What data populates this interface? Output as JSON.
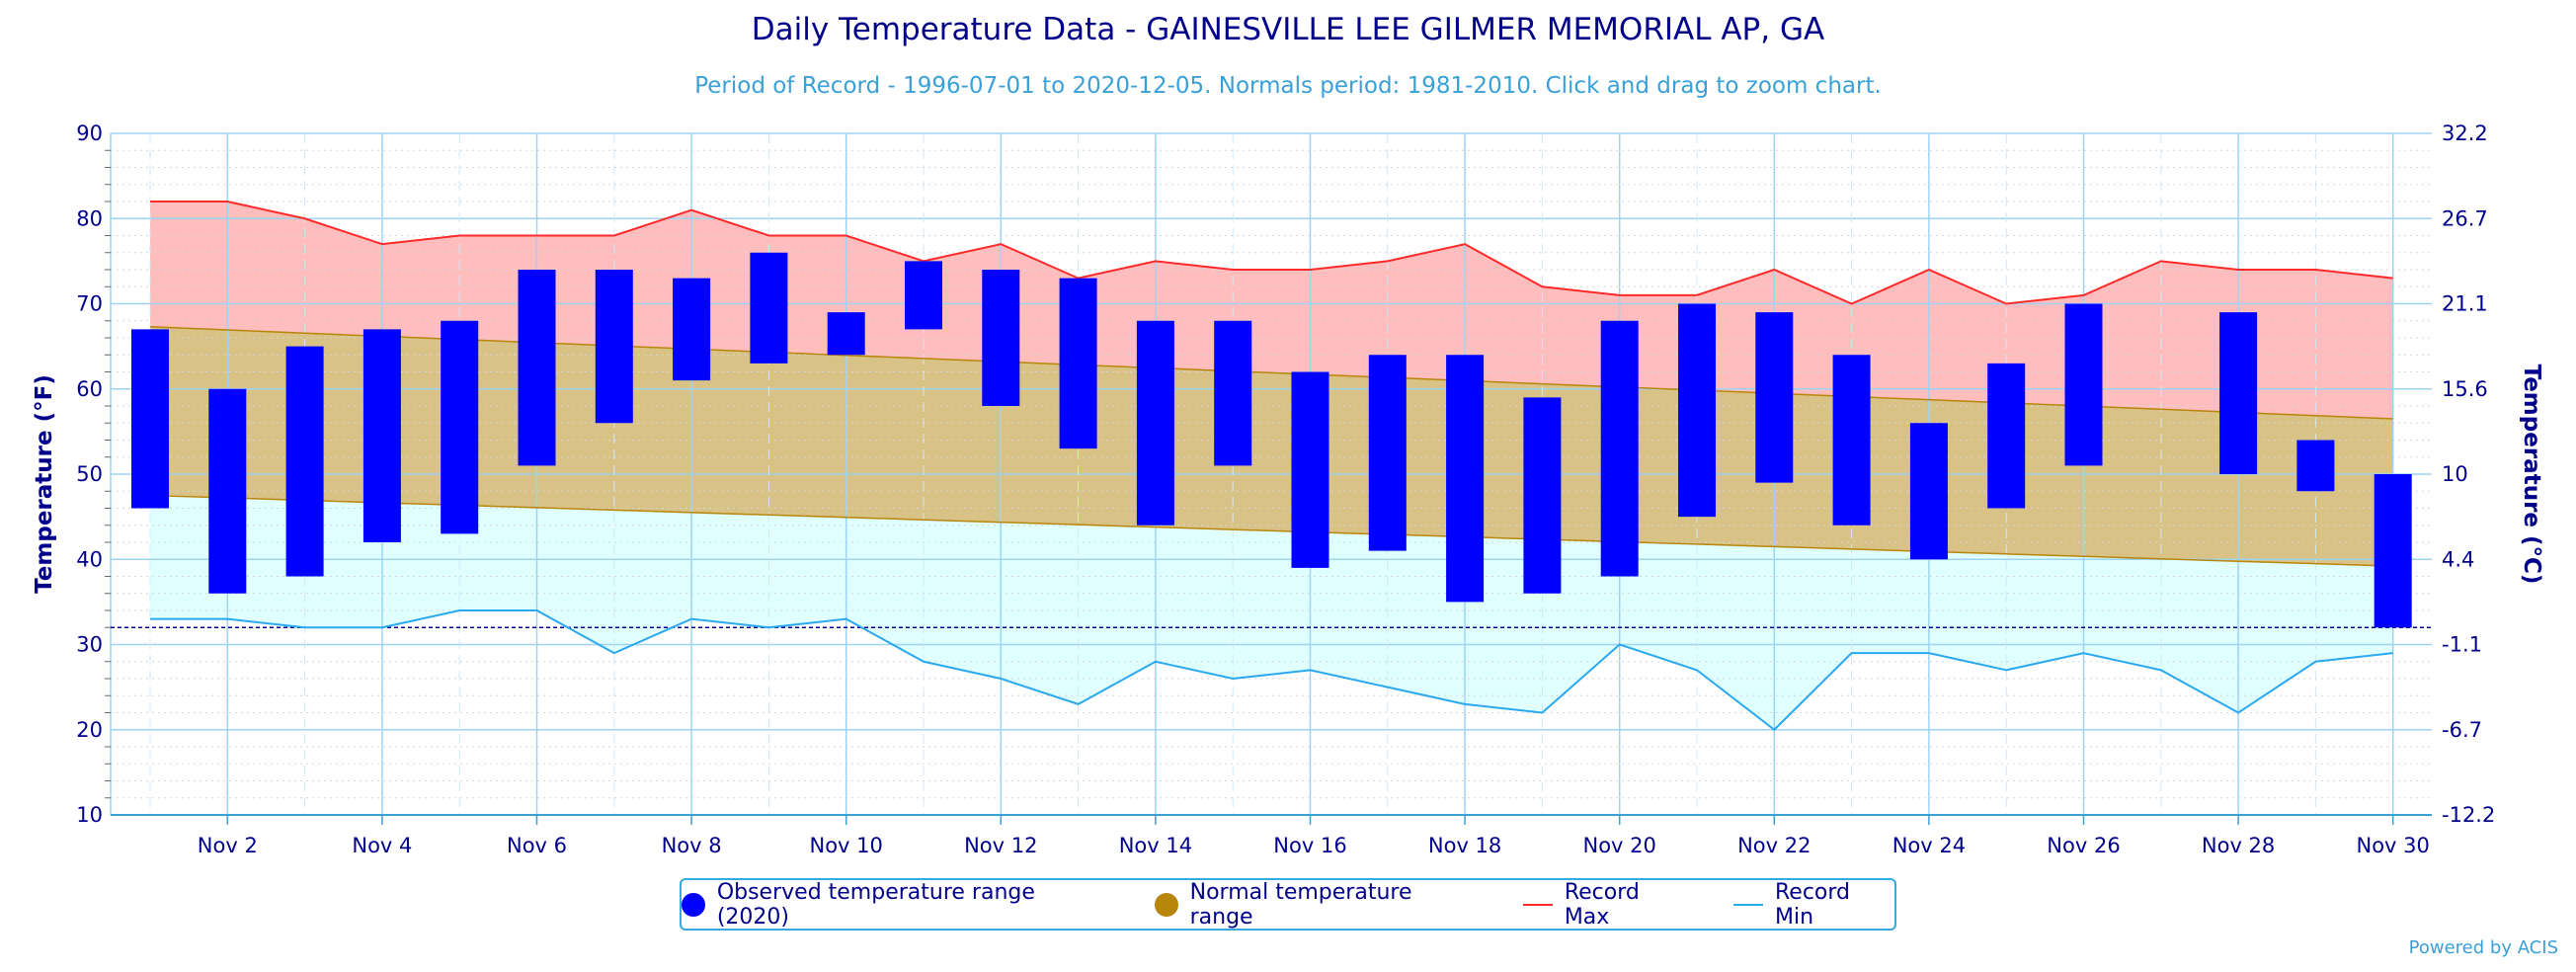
{
  "chart_data": {
    "type": "bar",
    "title": "Daily Temperature Data - GAINESVILLE LEE GILMER MEMORIAL AP, GA",
    "subtitle": "Period of Record - 1996-07-01 to 2020-12-05. Normals period: 1981-2010. Click and drag to zoom chart.",
    "ylabel": "Temperature (°F)",
    "ylabel_right": "Temperature (°C)",
    "ylim": [
      10,
      90
    ],
    "y_ticks": [
      10,
      20,
      30,
      40,
      50,
      60,
      70,
      80,
      90
    ],
    "y_ticks_right": [
      "-12.2",
      "-6.7",
      "-1.1",
      "4.4",
      "10",
      "15.6",
      "21.1",
      "26.7",
      "32.2"
    ],
    "x_tick_labels": [
      "Nov 2",
      "Nov 4",
      "Nov 6",
      "Nov 8",
      "Nov 10",
      "Nov 12",
      "Nov 14",
      "Nov 16",
      "Nov 18",
      "Nov 20",
      "Nov 22",
      "Nov 24",
      "Nov 26",
      "Nov 28",
      "Nov 30"
    ],
    "x_tick_days": [
      2,
      4,
      6,
      8,
      10,
      12,
      14,
      16,
      18,
      20,
      22,
      24,
      26,
      28,
      30
    ],
    "days": [
      1,
      2,
      3,
      4,
      5,
      6,
      7,
      8,
      9,
      10,
      11,
      12,
      13,
      14,
      15,
      16,
      17,
      18,
      19,
      20,
      21,
      22,
      23,
      24,
      25,
      26,
      27,
      28,
      29,
      30
    ],
    "freezing_line": 32,
    "grid": true,
    "legend_position": "bottom",
    "series": [
      {
        "name": "Observed temperature range (2020)",
        "color": "#0000ff",
        "low": [
          46,
          36,
          38,
          42,
          43,
          51,
          56,
          61,
          63,
          64,
          67,
          58,
          53,
          44,
          51,
          39,
          41,
          35,
          36,
          38,
          45,
          49,
          44,
          40,
          46,
          51,
          null,
          50,
          48,
          32
        ],
        "high": [
          67,
          60,
          65,
          67,
          68,
          74,
          74,
          73,
          76,
          69,
          75,
          74,
          73,
          68,
          68,
          62,
          64,
          64,
          59,
          68,
          70,
          69,
          64,
          56,
          63,
          70,
          null,
          69,
          54,
          50
        ]
      },
      {
        "name": "Normal temperature range",
        "color": "#b8860b",
        "fill": "#d9c285",
        "low_start": 47.5,
        "low_end": 39.2,
        "high_start": 67.3,
        "high_end": 56.5
      },
      {
        "name": "Record Max",
        "color": "#ff2a2a",
        "fill": "#ffbdbd",
        "values": [
          82,
          82,
          80,
          77,
          78,
          78,
          78,
          81,
          78,
          78,
          75,
          77,
          73,
          75,
          74,
          74,
          75,
          77,
          72,
          71,
          71,
          74,
          70,
          74,
          70,
          71,
          75,
          74,
          74,
          73
        ]
      },
      {
        "name": "Record Min",
        "color": "#2aa8f0",
        "fill": "#e0ffff",
        "values": [
          33,
          33,
          32,
          32,
          34,
          34,
          29,
          33,
          32,
          33,
          28,
          26,
          23,
          28,
          26,
          27,
          25,
          23,
          22,
          30,
          27,
          20,
          29,
          29,
          27,
          29,
          27,
          22,
          28,
          29
        ]
      }
    ]
  },
  "credit": "Powered by ACIS"
}
